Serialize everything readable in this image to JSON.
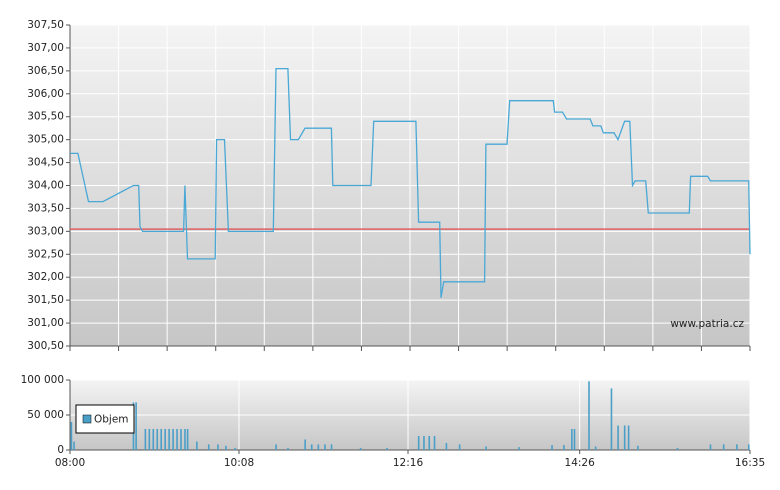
{
  "chart_data": [
    {
      "type": "line",
      "x": [
        "08:00",
        "08:06",
        "08:14",
        "08:25",
        "08:48",
        "08:52",
        "08:53",
        "08:55",
        "09:26",
        "09:27",
        "09:29",
        "09:50",
        "09:51",
        "09:57",
        "10:00",
        "10:34",
        "10:36",
        "10:45",
        "10:47",
        "10:53",
        "10:58",
        "11:18",
        "11:19",
        "11:48",
        "11:50",
        "12:22",
        "12:24",
        "12:40",
        "12:41",
        "12:43",
        "13:14",
        "13:15",
        "13:31",
        "13:33",
        "14:06",
        "14:07",
        "14:13",
        "14:16",
        "14:34",
        "14:36",
        "14:42",
        "14:44",
        "14:52",
        "14:55",
        "15:00",
        "15:04",
        "15:06",
        "15:08",
        "15:16",
        "15:18",
        "15:49",
        "15:50",
        "16:03",
        "16:05",
        "16:34",
        "16:35"
      ],
      "series": [
        {
          "color": "#4aa8d6",
          "values": [
            304.7,
            304.7,
            303.65,
            303.65,
            304.0,
            304.0,
            303.1,
            303.0,
            303.0,
            304.0,
            302.4,
            302.4,
            305.0,
            305.0,
            303.0,
            303.0,
            306.55,
            306.55,
            305.0,
            305.0,
            305.25,
            305.25,
            304.0,
            304.0,
            305.4,
            305.4,
            303.2,
            303.2,
            301.55,
            301.9,
            301.9,
            304.9,
            304.9,
            305.85,
            305.85,
            305.6,
            305.6,
            305.45,
            305.45,
            305.3,
            305.3,
            305.15,
            305.15,
            305.0,
            305.4,
            305.4,
            304.0,
            304.1,
            304.1,
            303.4,
            303.4,
            304.2,
            304.2,
            304.1,
            304.1,
            302.5
          ]
        }
      ],
      "reference_line": 303.05,
      "reference_color": "#e06060",
      "xlim": [
        "08:00",
        "16:35"
      ],
      "ylim": [
        300.5,
        307.5
      ],
      "yticks": [
        {
          "value": 300.5,
          "label": "300,50"
        },
        {
          "value": 301,
          "label": "301,00"
        },
        {
          "value": 301.5,
          "label": "301,50"
        },
        {
          "value": 302,
          "label": "302,00"
        },
        {
          "value": 302.5,
          "label": "302,50"
        },
        {
          "value": 303,
          "label": "303,00"
        },
        {
          "value": 303.5,
          "label": "303,50"
        },
        {
          "value": 304,
          "label": "304,00"
        },
        {
          "value": 304.5,
          "label": "304,50"
        },
        {
          "value": 305,
          "label": "305,00"
        },
        {
          "value": 305.5,
          "label": "305,50"
        },
        {
          "value": 306,
          "label": "306,00"
        },
        {
          "value": 306.5,
          "label": "306,50"
        },
        {
          "value": 307,
          "label": "307,00"
        },
        {
          "value": 307.5,
          "label": "307,50"
        }
      ],
      "grid": true,
      "watermark": "www.patria.cz"
    },
    {
      "type": "bar",
      "x": [
        "08:01",
        "08:03",
        "08:48",
        "08:50",
        "08:57",
        "09:00",
        "09:03",
        "09:06",
        "09:09",
        "09:12",
        "09:15",
        "09:18",
        "09:21",
        "09:24",
        "09:27",
        "09:29",
        "09:36",
        "09:45",
        "09:52",
        "09:58",
        "10:05",
        "10:36",
        "10:45",
        "10:58",
        "11:03",
        "11:08",
        "11:13",
        "11:18",
        "11:40",
        "12:00",
        "12:24",
        "12:28",
        "12:32",
        "12:36",
        "12:45",
        "12:55",
        "13:15",
        "13:40",
        "14:05",
        "14:14",
        "14:20",
        "14:22",
        "14:33",
        "14:38",
        "14:50",
        "14:55",
        "15:00",
        "15:03",
        "15:10",
        "15:40",
        "16:05",
        "16:15",
        "16:25",
        "16:34"
      ],
      "series": [
        {
          "name": "Objem",
          "color": "#4a9fc8",
          "values": [
            40000,
            12000,
            68000,
            68000,
            30000,
            30000,
            30000,
            30000,
            30000,
            30000,
            30000,
            30000,
            30000,
            30000,
            30000,
            30000,
            12000,
            8000,
            8000,
            6000,
            3000,
            8000,
            3000,
            15000,
            8000,
            8000,
            8000,
            8000,
            3000,
            3000,
            20000,
            20000,
            20000,
            20000,
            10000,
            8000,
            5000,
            4000,
            7000,
            7000,
            30000,
            30000,
            98000,
            5000,
            88000,
            35000,
            35000,
            35000,
            6000,
            3000,
            8000,
            8000,
            8000,
            8000
          ]
        }
      ],
      "xlim": [
        "08:00",
        "16:35"
      ],
      "xticks": [
        "08:00",
        "10:08",
        "12:16",
        "14:26",
        "16:35"
      ],
      "ylim": [
        0,
        100000
      ],
      "yticks": [
        0,
        {
          "value": 50000,
          "label": "50 000"
        },
        {
          "value": 100000,
          "label": "100 000"
        }
      ],
      "grid": true,
      "legend": "upper-left"
    }
  ]
}
